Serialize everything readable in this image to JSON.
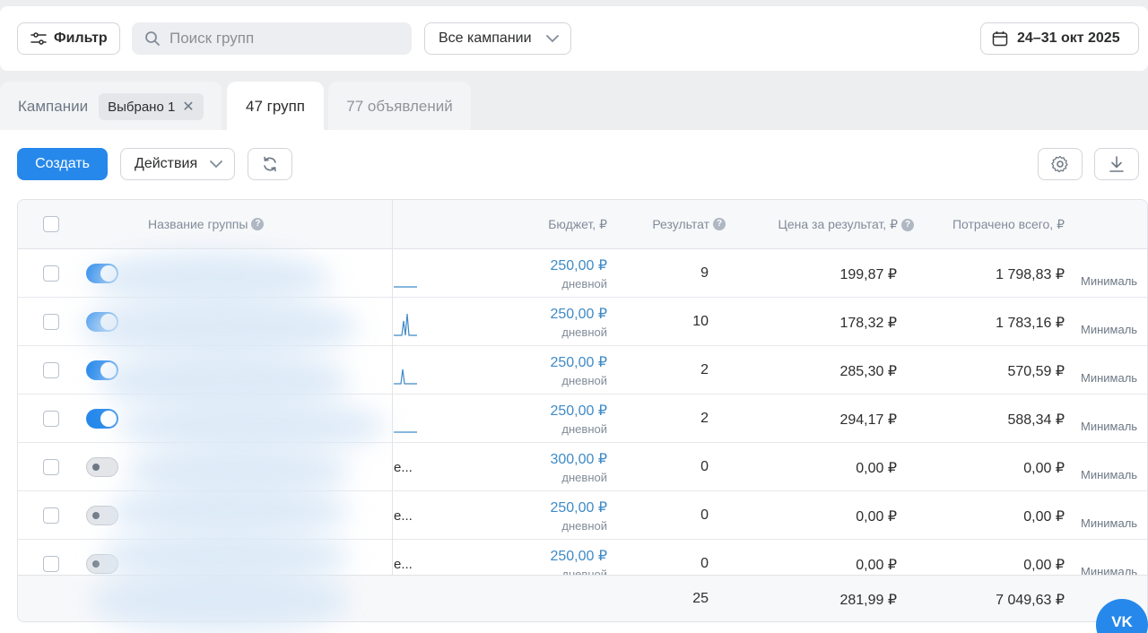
{
  "topbar": {
    "filter_label": "Фильтр",
    "search_placeholder": "Поиск групп",
    "campaign_select": "Все кампании",
    "date_range": "24–31 окт 2025"
  },
  "tabs": {
    "campaigns_label": "Кампании",
    "selected_chip": "Выбрано 1",
    "groups_label": "47 групп",
    "ads_label": "77 объявлений"
  },
  "toolbar": {
    "create_label": "Создать",
    "actions_label": "Действия"
  },
  "table": {
    "headers": {
      "name": "Название группы",
      "budget": "Бюджет, ₽",
      "result": "Результат",
      "price": "Цена за результат, ₽",
      "spent": "Потрачено всего, ₽"
    },
    "rows": [
      {
        "status": "on",
        "budget": "250,00 ₽",
        "period": "дневной",
        "result": "9",
        "price": "199,87 ₽",
        "spent": "1 798,83 ₽",
        "strategy": "Минималь"
      },
      {
        "status": "on",
        "budget": "250,00 ₽",
        "period": "дневной",
        "result": "10",
        "price": "178,32 ₽",
        "spent": "1 783,16 ₽",
        "strategy": "Минималь"
      },
      {
        "status": "on",
        "budget": "250,00 ₽",
        "period": "дневной",
        "result": "2",
        "price": "285,30 ₽",
        "spent": "570,59 ₽",
        "strategy": "Минималь"
      },
      {
        "status": "on",
        "budget": "250,00 ₽",
        "period": "дневной",
        "result": "2",
        "price": "294,17 ₽",
        "spent": "588,34 ₽",
        "strategy": "Минималь"
      },
      {
        "status": "off",
        "budget": "300,00 ₽",
        "period": "дневной",
        "result": "0",
        "price": "0,00 ₽",
        "spent": "0,00 ₽",
        "strategy": "Минималь",
        "name_tail": "е..."
      },
      {
        "status": "off",
        "budget": "250,00 ₽",
        "period": "дневной",
        "result": "0",
        "price": "0,00 ₽",
        "spent": "0,00 ₽",
        "strategy": "Минималь",
        "name_tail": "е..."
      },
      {
        "status": "off",
        "budget": "250,00 ₽",
        "period": "дневной",
        "result": "0",
        "price": "0,00 ₽",
        "spent": "0,00 ₽",
        "strategy": "Минималь",
        "name_tail": "е..."
      }
    ],
    "totals": {
      "result": "25",
      "price": "281,99 ₽",
      "spent": "7 049,63 ₽"
    }
  },
  "colors": {
    "accent": "#2688eb",
    "budget_link": "#3f8ac6"
  },
  "fab_label": "VK"
}
